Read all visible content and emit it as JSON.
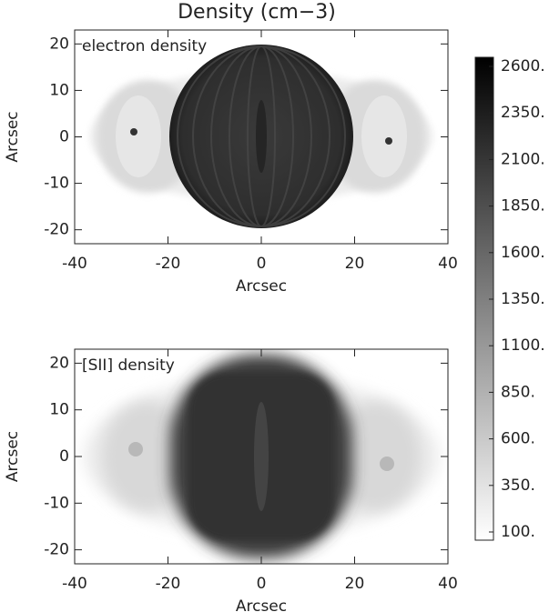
{
  "chart_data": {
    "type": "image",
    "title": "Density (cm−3)",
    "panels": [
      {
        "annotation": "electron density",
        "xlabel": "Arcsec",
        "ylabel": "Arcsec",
        "xlim": [
          -40,
          40
        ],
        "ylim": [
          -23,
          23
        ],
        "xticks": [
          -40,
          -20,
          0,
          20,
          40
        ],
        "yticks": [
          -20,
          -10,
          0,
          10,
          20
        ]
      },
      {
        "annotation": "[SII] density",
        "xlabel": "Arcsec",
        "ylabel": "Arcsec",
        "xlim": [
          -40,
          40
        ],
        "ylim": [
          -23,
          23
        ],
        "xticks": [
          -40,
          -20,
          0,
          20,
          40
        ],
        "yticks": [
          -20,
          -10,
          0,
          10,
          20
        ]
      }
    ],
    "colorbar": {
      "lim": [
        100,
        2600
      ],
      "colors": [
        "#ffffff",
        "#000000"
      ],
      "ticks": [
        {
          "value": 100,
          "label": "100."
        },
        {
          "value": 350,
          "label": "350."
        },
        {
          "value": 600,
          "label": "600."
        },
        {
          "value": 850,
          "label": "850."
        },
        {
          "value": 1100,
          "label": "1100."
        },
        {
          "value": 1350,
          "label": "1350."
        },
        {
          "value": 1600,
          "label": "1600."
        },
        {
          "value": 1850,
          "label": "1850."
        },
        {
          "value": 2100,
          "label": "2100."
        },
        {
          "value": 2350,
          "label": "2350."
        },
        {
          "value": 2600,
          "label": "2600."
        }
      ]
    }
  }
}
